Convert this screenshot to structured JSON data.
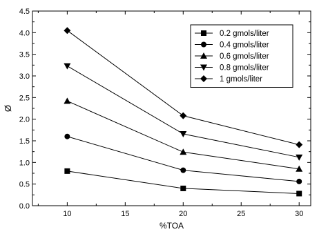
{
  "chart_data": {
    "type": "line",
    "xlabel": "%TOA",
    "ylabel": "Ø",
    "xlim": [
      7,
      31
    ],
    "ylim": [
      0,
      4.5
    ],
    "xticks": [
      10,
      15,
      20,
      25,
      30
    ],
    "yticks": [
      0.0,
      0.5,
      1.0,
      1.5,
      2.0,
      2.5,
      3.0,
      3.5,
      4.0,
      4.5
    ],
    "xtick_labels": [
      "10",
      "15",
      "20",
      "25",
      "30"
    ],
    "ytick_labels": [
      "0.0",
      "0.5",
      "1.0",
      "1.5",
      "2.0",
      "2.5",
      "3.0",
      "3.5",
      "4.0",
      "4.5"
    ],
    "grid": false,
    "legend_position": "top-right",
    "x": [
      10,
      20,
      30
    ],
    "series": [
      {
        "name": "0.2 gmols/liter",
        "marker": "square",
        "values": [
          0.8,
          0.4,
          0.28
        ]
      },
      {
        "name": "0.4 gmols/liter",
        "marker": "circle",
        "values": [
          1.6,
          0.82,
          0.56
        ]
      },
      {
        "name": "0.6 gmols/liter",
        "marker": "triangle-up",
        "values": [
          2.42,
          1.24,
          0.85
        ]
      },
      {
        "name": "0.8 gmols/liter",
        "marker": "triangle-down",
        "values": [
          3.23,
          1.66,
          1.12
        ]
      },
      {
        "name": "1 gmols/liter",
        "marker": "diamond",
        "values": [
          4.05,
          2.08,
          1.41
        ]
      }
    ],
    "color": "#000000"
  }
}
